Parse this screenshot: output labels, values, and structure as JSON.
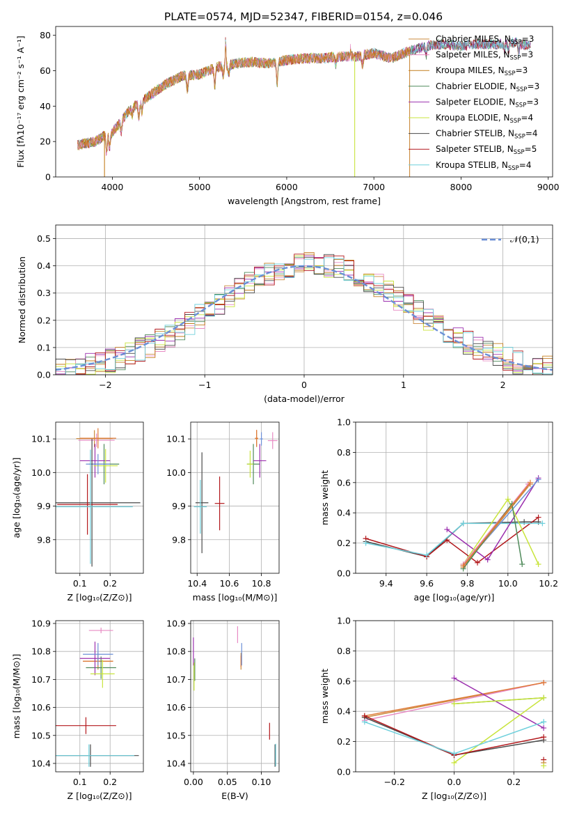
{
  "figure": {
    "title": "PLATE=0574, MJD=52347, FIBERID=0154, z=0.046",
    "models": [
      {
        "name": "Chabrier MILES",
        "nssp": "3",
        "color": "#cb8a3e"
      },
      {
        "name": "Salpeter MILES",
        "nssp": "3",
        "color": "#e78ac3"
      },
      {
        "name": "Kroupa MILES",
        "nssp": "3",
        "color": "#c47e1c"
      },
      {
        "name": "Chabrier ELODIE",
        "nssp": "3",
        "color": "#4f8a5a"
      },
      {
        "name": "Salpeter ELODIE",
        "nssp": "3",
        "color": "#9b2fae"
      },
      {
        "name": "Kroupa ELODIE",
        "nssp": "4",
        "color": "#c8e43b"
      },
      {
        "name": "Chabrier STELIB",
        "nssp": "4",
        "color": "#4a4a4a"
      },
      {
        "name": "Salpeter STELIB",
        "nssp": "5",
        "color": "#b2171b"
      },
      {
        "name": "Kroupa STELIB",
        "nssp": "4",
        "color": "#6fd0dc"
      }
    ],
    "extra_colors": {
      "blue": "#6b8fd6",
      "orange": "#e07b39"
    }
  },
  "chart_data": [
    {
      "id": "spectrum",
      "type": "line",
      "xlabel": "wavelength [Angstrom, rest frame]",
      "ylabel": "Flux [fλ10⁻¹⁷ erg cm⁻² s⁻¹ A⁻¹]",
      "xlim": [
        3350,
        9050
      ],
      "ylim": [
        0,
        85
      ],
      "xticks": [
        4000,
        5000,
        6000,
        7000,
        8000,
        9000
      ],
      "yticks": [
        0,
        20,
        40,
        60,
        80
      ],
      "grid": false,
      "legend": "upper right",
      "continuum": [
        [
          3600,
          18
        ],
        [
          3800,
          20
        ],
        [
          3900,
          23
        ],
        [
          4000,
          25
        ],
        [
          4200,
          38
        ],
        [
          4400,
          45
        ],
        [
          4600,
          52
        ],
        [
          4800,
          57
        ],
        [
          5000,
          58
        ],
        [
          5200,
          62
        ],
        [
          5400,
          64
        ],
        [
          5600,
          65
        ],
        [
          5800,
          64
        ],
        [
          6000,
          66
        ],
        [
          6200,
          67
        ],
        [
          6400,
          67
        ],
        [
          6600,
          68
        ],
        [
          6800,
          68
        ],
        [
          7000,
          70
        ],
        [
          7200,
          67
        ],
        [
          7400,
          71
        ],
        [
          7600,
          74
        ],
        [
          7800,
          75
        ],
        [
          8000,
          74
        ],
        [
          8200,
          75
        ],
        [
          8400,
          75
        ],
        [
          8600,
          76
        ],
        [
          8800,
          74
        ]
      ],
      "absorption": [
        [
          3934,
          -10
        ],
        [
          3968,
          -8
        ],
        [
          4102,
          -6
        ],
        [
          4227,
          -4
        ],
        [
          4304,
          -8
        ],
        [
          4340,
          -6
        ],
        [
          4861,
          -8
        ],
        [
          5175,
          -10
        ],
        [
          5270,
          -5
        ],
        [
          5335,
          -5
        ],
        [
          5890,
          -12
        ],
        [
          6563,
          -4
        ],
        [
          6870,
          -6
        ],
        [
          7600,
          -5
        ],
        [
          8498,
          -4
        ],
        [
          8542,
          -5
        ],
        [
          8662,
          -5
        ]
      ],
      "emission": [
        [
          5300,
          15
        ],
        [
          6730,
          5
        ]
      ],
      "model_cutoffs": [
        {
          "model": "Chabrier MILES",
          "end": 7420
        },
        {
          "model": "Salpeter MILES",
          "end": 7420
        },
        {
          "model": "Kroupa MILES",
          "end": 7420
        },
        {
          "model": "Kroupa ELODIE",
          "end": 6790
        }
      ],
      "drop_lines": [
        {
          "x": 3910,
          "model": "Kroupa MILES"
        },
        {
          "x": 7410,
          "model": "Chabrier MILES"
        },
        {
          "x": 6780,
          "model": "Kroupa ELODIE"
        }
      ]
    },
    {
      "id": "residuals",
      "type": "line",
      "xlabel": "(data-model)/error",
      "ylabel": "Normed distribution",
      "xlim": [
        -2.5,
        2.5
      ],
      "ylim": [
        0,
        0.55
      ],
      "xticks": [
        -2,
        -1,
        0,
        1,
        2
      ],
      "yticks": [
        0.0,
        0.1,
        0.2,
        0.3,
        0.4,
        0.5
      ],
      "grid": true,
      "legend": {
        "label": "𝒩(0,1)",
        "placement": "upper right"
      },
      "gaussian": {
        "mean": 0,
        "sigma": 1,
        "color": "#6b8fd6"
      },
      "hist_bin_width": 0.1
    },
    {
      "id": "age-vs-Z",
      "type": "scatter",
      "xlabel": "Z [log₁₀(Z/Z⊙)]",
      "ylabel": "age  [log₁₀(age/yr)]",
      "xlim": [
        0.02,
        0.31
      ],
      "ylim": [
        9.7,
        10.15
      ],
      "xticks": [
        0.1,
        0.2
      ],
      "yticks": [
        9.8,
        9.9,
        10.0,
        10.1
      ],
      "grid": true,
      "points": [
        {
          "x": 0.148,
          "y": 10.101,
          "xerr": 0.06,
          "yerr": 0.025,
          "c": "#cb8a3e"
        },
        {
          "x": 0.155,
          "y": 10.096,
          "xerr": 0.06,
          "yerr": 0.02,
          "c": "#e78ac3"
        },
        {
          "x": 0.16,
          "y": 10.102,
          "xerr": 0.06,
          "yerr": 0.03,
          "c": "#e07b39"
        },
        {
          "x": 0.18,
          "y": 10.025,
          "xerr": 0.05,
          "yerr": 0.06,
          "c": "#4f8a5a"
        },
        {
          "x": 0.15,
          "y": 10.035,
          "xerr": 0.05,
          "yerr": 0.05,
          "c": "#9b2fae"
        },
        {
          "x": 0.185,
          "y": 10.02,
          "xerr": 0.04,
          "yerr": 0.05,
          "c": "#c8e43b"
        },
        {
          "x": 0.16,
          "y": 10.025,
          "xerr": 0.04,
          "yerr": 0.03,
          "c": "#6b8fd6"
        },
        {
          "x": 0.14,
          "y": 9.91,
          "xerr": 0.16,
          "yerr": 0.19,
          "c": "#4a4a4a"
        },
        {
          "x": 0.125,
          "y": 9.905,
          "xerr": 0.1,
          "yerr": 0.09,
          "c": "#b2171b"
        },
        {
          "x": 0.135,
          "y": 9.898,
          "xerr": 0.14,
          "yerr": 0.17,
          "c": "#6fd0dc"
        }
      ]
    },
    {
      "id": "age-vs-mass",
      "type": "scatter",
      "xlabel": "mass [log₁₀(M/M⊙)]",
      "ylabel": "",
      "xlim": [
        10.36,
        10.91
      ],
      "ylim": [
        9.7,
        10.15
      ],
      "xticks": [
        10.4,
        10.6,
        10.8
      ],
      "yticks": [
        9.8,
        9.9,
        10.0,
        10.1
      ],
      "grid": true,
      "points": [
        {
          "x": 10.77,
          "y": 10.101,
          "xerr": 0.01,
          "yerr": 0.025,
          "c": "#cb8a3e"
        },
        {
          "x": 10.87,
          "y": 10.095,
          "xerr": 0.03,
          "yerr": 0.025,
          "c": "#e78ac3"
        },
        {
          "x": 10.77,
          "y": 10.102,
          "xerr": 0.01,
          "yerr": 0.025,
          "c": "#e07b39"
        },
        {
          "x": 10.75,
          "y": 10.025,
          "xerr": 0.04,
          "yerr": 0.06,
          "c": "#4f8a5a"
        },
        {
          "x": 10.79,
          "y": 10.035,
          "xerr": 0.04,
          "yerr": 0.05,
          "c": "#9b2fae"
        },
        {
          "x": 10.73,
          "y": 10.025,
          "xerr": 0.02,
          "yerr": 0.04,
          "c": "#c8e43b"
        },
        {
          "x": 10.8,
          "y": 10.1,
          "xerr": 0.01,
          "yerr": 0.02,
          "c": "#6b8fd6"
        },
        {
          "x": 10.43,
          "y": 9.91,
          "xerr": 0.04,
          "yerr": 0.15,
          "c": "#4a4a4a"
        },
        {
          "x": 10.54,
          "y": 9.908,
          "xerr": 0.03,
          "yerr": 0.08,
          "c": "#b2171b"
        },
        {
          "x": 10.42,
          "y": 9.898,
          "xerr": 0.04,
          "yerr": 0.08,
          "c": "#6fd0dc"
        }
      ]
    },
    {
      "id": "massweight-vs-age",
      "type": "line",
      "xlabel": "age  [log₁₀(age/yr)]",
      "ylabel": "mass weight",
      "xlim": [
        9.25,
        10.22
      ],
      "ylim": [
        0,
        1
      ],
      "xticks": [
        9.4,
        9.6,
        9.8,
        10.0,
        10.2
      ],
      "yticks": [
        0.0,
        0.2,
        0.4,
        0.6,
        0.8,
        1.0
      ],
      "grid": true,
      "series": [
        {
          "c": "#4a4a4a",
          "pts": [
            [
              9.3,
              0.21
            ],
            [
              9.6,
              0.11
            ],
            [
              9.78,
              0.33
            ],
            [
              10.08,
              0.34
            ],
            [
              10.15,
              0.34
            ]
          ]
        },
        {
          "c": "#b2171b",
          "pts": [
            [
              9.3,
              0.23
            ],
            [
              9.6,
              0.11
            ],
            [
              9.7,
              0.22
            ],
            [
              9.85,
              0.07
            ],
            [
              10.15,
              0.37
            ]
          ]
        },
        {
          "c": "#6fd0dc",
          "pts": [
            [
              9.3,
              0.2
            ],
            [
              9.6,
              0.12
            ],
            [
              9.78,
              0.33
            ],
            [
              10.17,
              0.33
            ]
          ]
        },
        {
          "c": "#9b2fae",
          "pts": [
            [
              9.7,
              0.29
            ],
            [
              9.9,
              0.09
            ],
            [
              10.15,
              0.63
            ]
          ]
        },
        {
          "c": "#c8e43b",
          "pts": [
            [
              9.78,
              0.06
            ],
            [
              10.0,
              0.49
            ],
            [
              10.15,
              0.06
            ]
          ]
        },
        {
          "c": "#6b8fd6",
          "pts": [
            [
              9.78,
              0.05
            ],
            [
              10.15,
              0.62
            ]
          ]
        },
        {
          "c": "#cb8a3e",
          "pts": [
            [
              9.78,
              0.04
            ],
            [
              10.11,
              0.59
            ]
          ]
        },
        {
          "c": "#e78ac3",
          "pts": [
            [
              9.78,
              0.06
            ],
            [
              10.1,
              0.59
            ]
          ]
        },
        {
          "c": "#4f8a5a",
          "pts": [
            [
              9.78,
              0.03
            ],
            [
              10.02,
              0.46
            ],
            [
              10.07,
              0.06
            ]
          ]
        },
        {
          "c": "#e07b39",
          "pts": [
            [
              9.78,
              0.05
            ],
            [
              10.11,
              0.6
            ]
          ]
        }
      ]
    },
    {
      "id": "mass-vs-Z",
      "type": "scatter",
      "xlabel": "Z [log₁₀(Z/Z⊙)]",
      "ylabel": "mass [log₁₀(M/M⊙)]",
      "xlim": [
        0.02,
        0.31
      ],
      "ylim": [
        10.37,
        10.91
      ],
      "xticks": [
        0.1,
        0.2
      ],
      "yticks": [
        10.4,
        10.5,
        10.6,
        10.7,
        10.8,
        10.9
      ],
      "grid": true,
      "points": [
        {
          "x": 0.16,
          "y": 10.765,
          "xerr": 0.05,
          "yerr": 0.03,
          "c": "#cb8a3e"
        },
        {
          "x": 0.17,
          "y": 10.875,
          "xerr": 0.04,
          "yerr": 0.01,
          "c": "#e78ac3"
        },
        {
          "x": 0.16,
          "y": 10.765,
          "xerr": 0.05,
          "yerr": 0.02,
          "c": "#e07b39"
        },
        {
          "x": 0.17,
          "y": 10.742,
          "xerr": 0.05,
          "yerr": 0.04,
          "c": "#4f8a5a"
        },
        {
          "x": 0.15,
          "y": 10.775,
          "xerr": 0.05,
          "yerr": 0.06,
          "c": "#9b2fae"
        },
        {
          "x": 0.175,
          "y": 10.72,
          "xerr": 0.04,
          "yerr": 0.05,
          "c": "#c8e43b"
        },
        {
          "x": 0.16,
          "y": 10.79,
          "xerr": 0.05,
          "yerr": 0.04,
          "c": "#6b8fd6"
        },
        {
          "x": 0.135,
          "y": 10.428,
          "xerr": 0.16,
          "yerr": 0.04,
          "c": "#4a4a4a"
        },
        {
          "x": 0.12,
          "y": 10.535,
          "xerr": 0.1,
          "yerr": 0.03,
          "c": "#b2171b"
        },
        {
          "x": 0.13,
          "y": 10.428,
          "xerr": 0.15,
          "yerr": 0.04,
          "c": "#6fd0dc"
        }
      ]
    },
    {
      "id": "mass-vs-ebv",
      "type": "scatter",
      "xlabel": "E(B-V)",
      "ylabel": "",
      "xlim": [
        -0.004,
        0.126
      ],
      "ylim": [
        10.37,
        10.91
      ],
      "xticks": [
        0.0,
        0.05,
        0.1
      ],
      "yticks": [
        10.4,
        10.5,
        10.6,
        10.7,
        10.8,
        10.9
      ],
      "grid": true,
      "points": [
        {
          "x": 0.07,
          "y": 10.765,
          "xerr": 0,
          "yerr": 0.03,
          "c": "#cb8a3e"
        },
        {
          "x": 0.065,
          "y": 10.86,
          "xerr": 0,
          "yerr": 0.03,
          "c": "#e78ac3"
        },
        {
          "x": 0.07,
          "y": 10.765,
          "xerr": 0,
          "yerr": 0.02,
          "c": "#e07b39"
        },
        {
          "x": 0.002,
          "y": 10.735,
          "xerr": 0,
          "yerr": 0.04,
          "c": "#4f8a5a"
        },
        {
          "x": 0.0,
          "y": 10.8,
          "xerr": 0,
          "yerr": 0.05,
          "c": "#9b2fae"
        },
        {
          "x": 0.001,
          "y": 10.71,
          "xerr": 0,
          "yerr": 0.05,
          "c": "#c8e43b"
        },
        {
          "x": 0.071,
          "y": 10.79,
          "xerr": 0,
          "yerr": 0.04,
          "c": "#6b8fd6"
        },
        {
          "x": 0.12,
          "y": 10.428,
          "xerr": 0,
          "yerr": 0.04,
          "c": "#4a4a4a"
        },
        {
          "x": 0.112,
          "y": 10.515,
          "xerr": 0,
          "yerr": 0.03,
          "c": "#b2171b"
        },
        {
          "x": 0.121,
          "y": 10.43,
          "xerr": 0,
          "yerr": 0.04,
          "c": "#6fd0dc"
        }
      ]
    },
    {
      "id": "massweight-vs-Z",
      "type": "line",
      "xlabel": "Z [log₁₀(Z/Z⊙)]",
      "ylabel": "mass weight",
      "xlim": [
        -0.33,
        0.33
      ],
      "ylim": [
        0,
        1
      ],
      "xticks": [
        -0.2,
        0.0,
        0.2
      ],
      "yticks": [
        0.0,
        0.2,
        0.4,
        0.6,
        0.8,
        1.0
      ],
      "grid": true,
      "series": [
        {
          "c": "#cb8a3e",
          "pts": [
            [
              -0.3,
              0.36
            ],
            [
              0.3,
              0.59
            ]
          ]
        },
        {
          "c": "#e78ac3",
          "pts": [
            [
              -0.3,
              0.34
            ],
            [
              0.3,
              0.59
            ]
          ]
        },
        {
          "c": "#e07b39",
          "pts": [
            [
              -0.3,
              0.37
            ],
            [
              0.3,
              0.59
            ]
          ]
        },
        {
          "c": "#9b2fae",
          "pts": [
            [
              0.0,
              0.62
            ],
            [
              0.3,
              0.29
            ]
          ]
        },
        {
          "c": "#4f8a5a",
          "pts": [
            [
              0.0,
              0.45
            ],
            [
              0.3,
              0.49
            ]
          ]
        },
        {
          "c": "#c8e43b",
          "pts": [
            [
              0.0,
              0.06
            ],
            [
              0.3,
              0.49
            ],
            [
              0.0,
              0.45
            ]
          ]
        },
        {
          "c": "#4a4a4a",
          "pts": [
            [
              -0.3,
              0.36
            ],
            [
              0.0,
              0.11
            ],
            [
              0.3,
              0.21
            ]
          ]
        },
        {
          "c": "#b2171b",
          "pts": [
            [
              -0.3,
              0.37
            ],
            [
              0.0,
              0.11
            ],
            [
              0.3,
              0.23
            ]
          ]
        },
        {
          "c": "#6fd0dc",
          "pts": [
            [
              -0.3,
              0.33
            ],
            [
              0.0,
              0.12
            ],
            [
              0.3,
              0.33
            ]
          ]
        }
      ],
      "markers": [
        [
          0.3,
          0.08,
          "#b2171b"
        ],
        [
          0.3,
          0.06,
          "#cb8a3e"
        ],
        [
          0.3,
          0.04,
          "#c8e43b"
        ],
        [
          0.3,
          0.33,
          "#6fd0dc"
        ]
      ]
    }
  ]
}
